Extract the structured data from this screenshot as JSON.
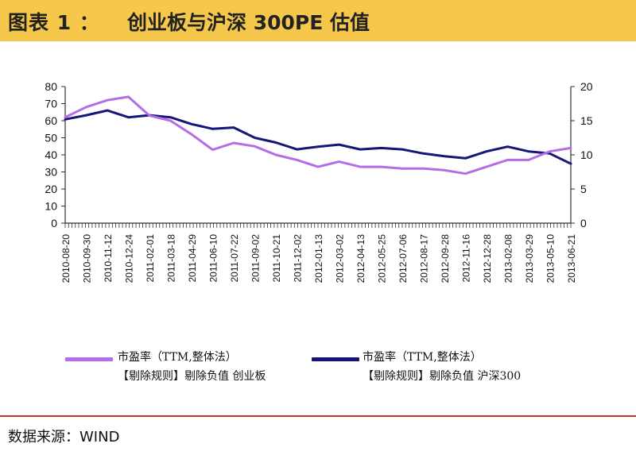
{
  "header": {
    "label": "图表 1 ：",
    "title": "创业板与沪深 300PE 估值"
  },
  "source": "数据来源：WIND",
  "legend": [
    {
      "line1": "市盈率（TTM,整体法）",
      "line2": "【剔除规则】剔除负值 创业板",
      "color": "#b46de6"
    },
    {
      "line1": "市盈率（TTM,整体法）",
      "line2": "【剔除规则】剔除负值 沪深300",
      "color": "#16157a"
    }
  ],
  "chart_data": {
    "type": "line",
    "x": [
      "2010-08-20",
      "2010-09-30",
      "2010-11-12",
      "2010-12-24",
      "2011-02-01",
      "2011-03-18",
      "2011-04-29",
      "2011-06-10",
      "2011-07-22",
      "2011-09-02",
      "2011-10-21",
      "2011-12-02",
      "2012-01-13",
      "2012-03-02",
      "2012-04-13",
      "2012-05-25",
      "2012-07-06",
      "2012-08-17",
      "2012-09-28",
      "2012-11-16",
      "2012-12-28",
      "2013-02-08",
      "2013-03-29",
      "2013-05-10",
      "2013-06-21"
    ],
    "x_tick_labels": [
      "2010-08-20",
      "2010-09-30",
      "2010-11-12",
      "2010-12-24",
      "2011-02-01",
      "2011-03-18",
      "2011-04-29",
      "2011-06-10",
      "2011-07-22",
      "2011-09-02",
      "2011-10-21",
      "2011-12-02",
      "2012-01-13",
      "2012-03-02",
      "2012-04-13",
      "2012-05-25",
      "2012-07-06",
      "2012-08-17",
      "2012-09-28",
      "2012-11-16",
      "2012-12-28",
      "2013-02-08",
      "2013-03-29",
      "2013-05-10",
      "2013-06-21"
    ],
    "y_left_ticks": [
      0,
      10,
      20,
      30,
      40,
      50,
      60,
      70,
      80
    ],
    "y_right_ticks": [
      0,
      5,
      10,
      15,
      20
    ],
    "ylim_left": [
      0,
      80
    ],
    "ylim_right": [
      0,
      20
    ],
    "series": [
      {
        "name": "市盈率（TTM,整体法）【剔除规则】剔除负值 创业板",
        "axis": "left",
        "color": "#b46de6",
        "values": [
          62,
          68,
          72,
          74,
          63,
          60,
          52,
          43,
          47,
          45,
          40,
          37,
          33,
          36,
          33,
          33,
          32,
          32,
          31,
          29,
          33,
          37,
          37,
          42,
          44
        ]
      },
      {
        "name": "市盈率（TTM,整体法）【剔除规则】剔除负值 沪深300",
        "axis": "right",
        "color": "#16157a",
        "values": [
          15.2,
          15.8,
          16.5,
          15.5,
          15.8,
          15.5,
          14.5,
          13.8,
          14.0,
          12.5,
          11.8,
          10.8,
          11.2,
          11.5,
          10.8,
          11.0,
          10.8,
          10.2,
          9.8,
          9.5,
          10.5,
          11.2,
          10.5,
          10.2,
          8.7
        ]
      }
    ],
    "grid": false,
    "legend_position": "bottom"
  }
}
